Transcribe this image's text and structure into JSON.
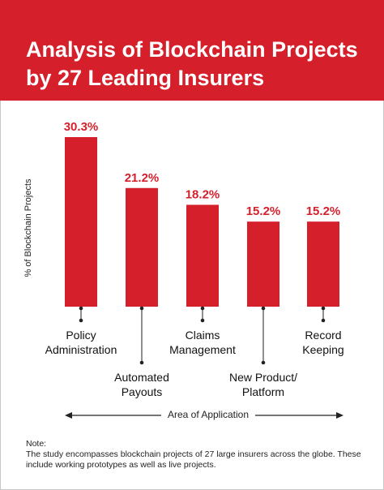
{
  "chart_data": {
    "type": "bar",
    "title": "Analysis of Blockchain Projects by 27 Leading Insurers",
    "ylabel": "% of Blockchain Projects",
    "xlabel": "Area of Application",
    "categories": [
      "Policy Administration",
      "Automated Payouts",
      "Claims Management",
      "New Product/ Platform",
      "Record Keeping"
    ],
    "category_lines": [
      [
        "Policy",
        "Administration"
      ],
      [
        "Automated",
        "Payouts"
      ],
      [
        "Claims",
        "Management"
      ],
      [
        "New Product/",
        "Platform"
      ],
      [
        "Record",
        "Keeping"
      ]
    ],
    "values": [
      30.3,
      21.2,
      18.2,
      15.2,
      15.2
    ],
    "value_labels": [
      "30.3%",
      "21.2%",
      "18.2%",
      "15.2%",
      "15.2%"
    ],
    "label_tier": [
      "upper",
      "lower",
      "upper",
      "lower",
      "upper"
    ],
    "ylim": [
      0,
      30.3
    ],
    "color": "#d51f2b",
    "grid": false
  },
  "note": {
    "heading": "Note:",
    "text": "The study encompasses blockchain projects of 27 large insurers across the globe. These include working prototypes as well as live projects."
  }
}
